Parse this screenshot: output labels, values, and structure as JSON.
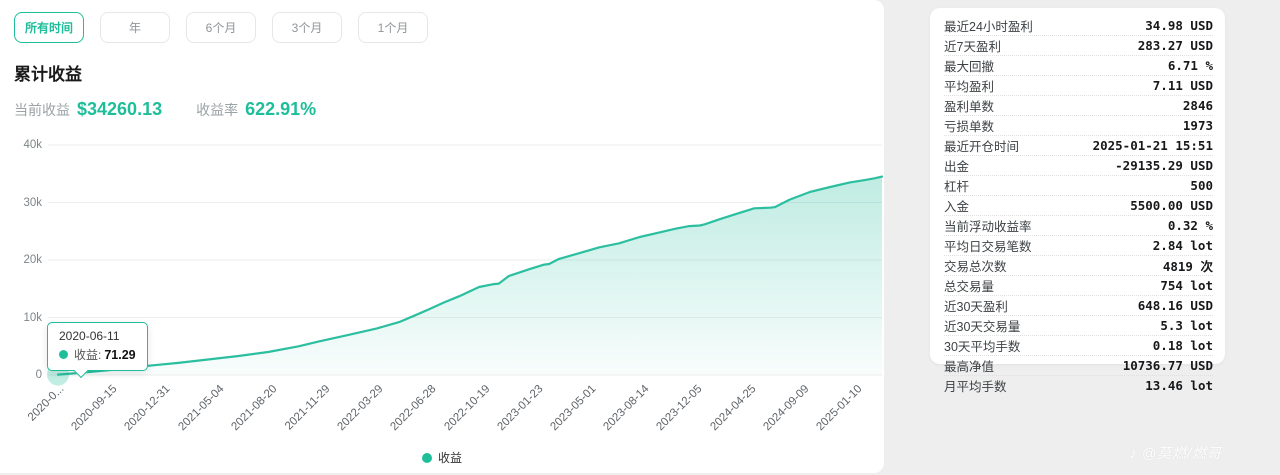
{
  "colors": {
    "accent": "#1FBE9A",
    "line": "#2BBFA0",
    "grid": "#EDEDED",
    "page_bg": "#EEEEEE"
  },
  "filters": {
    "items": [
      {
        "label": "所有时间",
        "selected": true
      },
      {
        "label": "年",
        "selected": false
      },
      {
        "label": "6个月",
        "selected": false
      },
      {
        "label": "3个月",
        "selected": false
      },
      {
        "label": "1个月",
        "selected": false
      }
    ]
  },
  "header": {
    "title": "累计收益",
    "current_label": "当前收益",
    "current_value": "$34260.13",
    "rate_label": "收益率",
    "rate_value": "622.91%"
  },
  "chart_data": {
    "type": "area",
    "title": "累计收益",
    "series_name": "收益",
    "legend_position": "bottom-center",
    "grid": true,
    "ylim": [
      0,
      40000
    ],
    "y_ticks": [
      "0",
      "10k",
      "20k",
      "30k",
      "40k"
    ],
    "x_labels": [
      "2020-0...",
      "2020-09-15",
      "2020-12-31",
      "2021-05-04",
      "2021-08-20",
      "2021-11-29",
      "2022-03-29",
      "2022-06-28",
      "2022-10-19",
      "2023-01-23",
      "2023-05-01",
      "2023-08-14",
      "2023-12-05",
      "2024-04-25",
      "2024-09-09",
      "2025-01-10"
    ],
    "points": [
      [
        0.0,
        70
      ],
      [
        0.02,
        300
      ],
      [
        0.036,
        500
      ],
      [
        0.073,
        1000
      ],
      [
        0.109,
        1600
      ],
      [
        0.146,
        2100
      ],
      [
        0.182,
        2700
      ],
      [
        0.219,
        3300
      ],
      [
        0.255,
        4000
      ],
      [
        0.292,
        5000
      ],
      [
        0.316,
        5800
      ],
      [
        0.353,
        7000
      ],
      [
        0.387,
        8100
      ],
      [
        0.414,
        9200
      ],
      [
        0.432,
        10300
      ],
      [
        0.45,
        11400
      ],
      [
        0.468,
        12600
      ],
      [
        0.487,
        13700
      ],
      [
        0.511,
        15300
      ],
      [
        0.529,
        15800
      ],
      [
        0.535,
        15900
      ],
      [
        0.547,
        17200
      ],
      [
        0.572,
        18400
      ],
      [
        0.59,
        19200
      ],
      [
        0.596,
        19300
      ],
      [
        0.608,
        20200
      ],
      [
        0.633,
        21200
      ],
      [
        0.657,
        22200
      ],
      [
        0.681,
        22900
      ],
      [
        0.706,
        24000
      ],
      [
        0.73,
        24800
      ],
      [
        0.748,
        25400
      ],
      [
        0.766,
        25900
      ],
      [
        0.779,
        26000
      ],
      [
        0.785,
        26200
      ],
      [
        0.803,
        27100
      ],
      [
        0.827,
        28200
      ],
      [
        0.845,
        29000
      ],
      [
        0.864,
        29100
      ],
      [
        0.87,
        29200
      ],
      [
        0.888,
        30500
      ],
      [
        0.912,
        31800
      ],
      [
        0.937,
        32700
      ],
      [
        0.961,
        33500
      ],
      [
        0.979,
        33900
      ],
      [
        0.991,
        34200
      ],
      [
        1.0,
        34500
      ]
    ],
    "end_value_usd": 34260.13
  },
  "tooltip": {
    "date": "2020-06-11",
    "series": "收益",
    "label": "收益:",
    "value": "71.29"
  },
  "legend": {
    "label": "收益"
  },
  "stats": {
    "rows": [
      {
        "label": "最近24小时盈利",
        "value": "34.98 USD"
      },
      {
        "label": "近7天盈利",
        "value": "283.27 USD"
      },
      {
        "label": "最大回撤",
        "value": "6.71 %"
      },
      {
        "label": "平均盈利",
        "value": "7.11 USD"
      },
      {
        "label": "盈利单数",
        "value": "2846"
      },
      {
        "label": "亏损单数",
        "value": "1973"
      },
      {
        "label": "最近开仓时间",
        "value": "2025-01-21 15:51"
      },
      {
        "label": "出金",
        "value": "-29135.29 USD"
      },
      {
        "label": "杠杆",
        "value": "500"
      },
      {
        "label": "入金",
        "value": "5500.00 USD"
      },
      {
        "label": "当前浮动收益率",
        "value": "0.32 %"
      },
      {
        "label": "平均日交易笔数",
        "value": "2.84 lot"
      },
      {
        "label": "交易总次数",
        "value": "4819 次"
      },
      {
        "label": "总交易量",
        "value": "754 lot"
      },
      {
        "label": "近30天盈利",
        "value": "648.16 USD"
      },
      {
        "label": "近30天交易量",
        "value": "5.3 lot"
      },
      {
        "label": "30天平均手数",
        "value": "0.18 lot"
      },
      {
        "label": "最高净值",
        "value": "10736.77 USD"
      },
      {
        "label": "月平均手数",
        "value": "13.46 lot"
      }
    ]
  },
  "watermark": {
    "icon": "music-note-icon",
    "icon_glyph": "♪",
    "text": "@莫燃/燃哥"
  }
}
